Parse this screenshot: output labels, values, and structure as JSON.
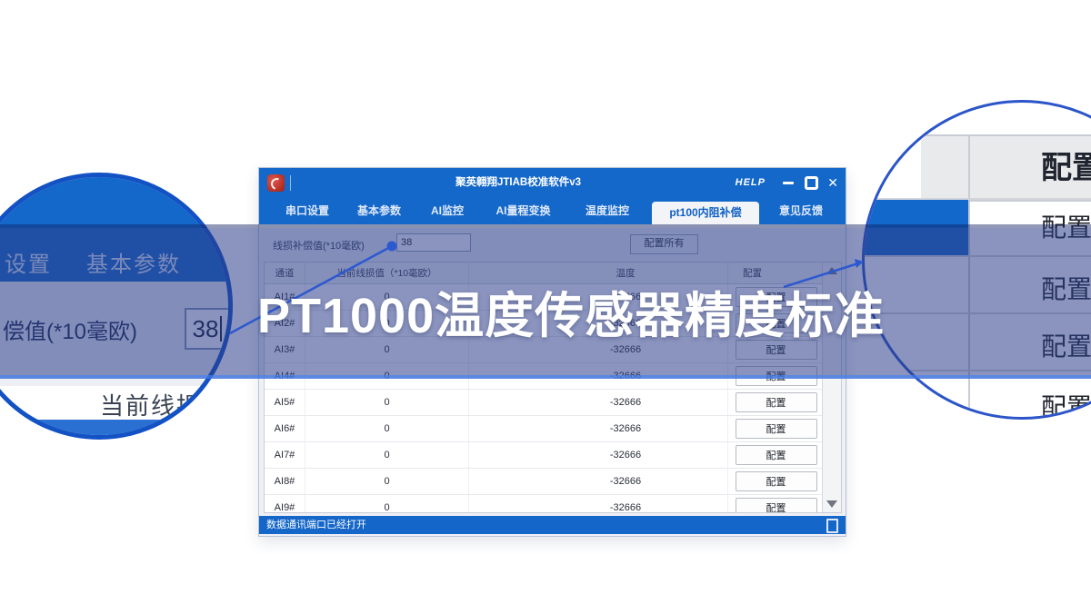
{
  "banner": {
    "title": "PT1000温度传感器精度标准"
  },
  "window": {
    "title": "聚英翱翔JTIAB校准软件v3",
    "help_label": "HELP",
    "controls": {
      "minimize_glyph": "",
      "close_glyph": "✕"
    },
    "tabs": [
      {
        "label": "串口设置",
        "active": false
      },
      {
        "label": "基本参数",
        "active": false
      },
      {
        "label": "AI监控",
        "active": false
      },
      {
        "label": "AI量程变换",
        "active": false
      },
      {
        "label": "温度监控",
        "active": false
      },
      {
        "label": "pt100内阻补偿",
        "active": true
      },
      {
        "label": "意见反馈",
        "active": false
      }
    ],
    "toolbar": {
      "compensation_label": "线损补偿值(*10毫欧)",
      "compensation_value": "38",
      "configure_all_label": "配置所有"
    },
    "table": {
      "headers": [
        "通道",
        "当前线损值（*10毫欧）",
        "温度",
        "配置"
      ],
      "rows": [
        {
          "channel": "AI1#",
          "line_loss": "0",
          "temperature": "-32666",
          "action": "配置"
        },
        {
          "channel": "AI2#",
          "line_loss": "0",
          "temperature": "-32666",
          "action": "配置"
        },
        {
          "channel": "AI3#",
          "line_loss": "0",
          "temperature": "-32666",
          "action": "配置"
        },
        {
          "channel": "AI4#",
          "line_loss": "0",
          "temperature": "-32666",
          "action": "配置"
        },
        {
          "channel": "AI5#",
          "line_loss": "0",
          "temperature": "-32666",
          "action": "配置"
        },
        {
          "channel": "AI6#",
          "line_loss": "0",
          "temperature": "-32666",
          "action": "配置"
        },
        {
          "channel": "AI7#",
          "line_loss": "0",
          "temperature": "-32666",
          "action": "配置"
        },
        {
          "channel": "AI8#",
          "line_loss": "0",
          "temperature": "-32666",
          "action": "配置"
        },
        {
          "channel": "AI9#",
          "line_loss": "0",
          "temperature": "-32666",
          "action": "配置"
        }
      ]
    },
    "status": {
      "text": "数据通讯端口已经打开"
    }
  },
  "left_magnifier": {
    "tab_partial": "设置",
    "tab_basic": "基本参数",
    "comp_label_partial": "偿值(*10毫欧)",
    "comp_value": "38",
    "table_header_partial": "当前线损值"
  },
  "right_magnifier": {
    "header": "配置",
    "buttons": [
      "配置",
      "配置",
      "配置",
      "配置"
    ]
  },
  "colors": {
    "accent": "#1468ca",
    "band": "#2a3c89",
    "callout": "#2d59d0"
  }
}
